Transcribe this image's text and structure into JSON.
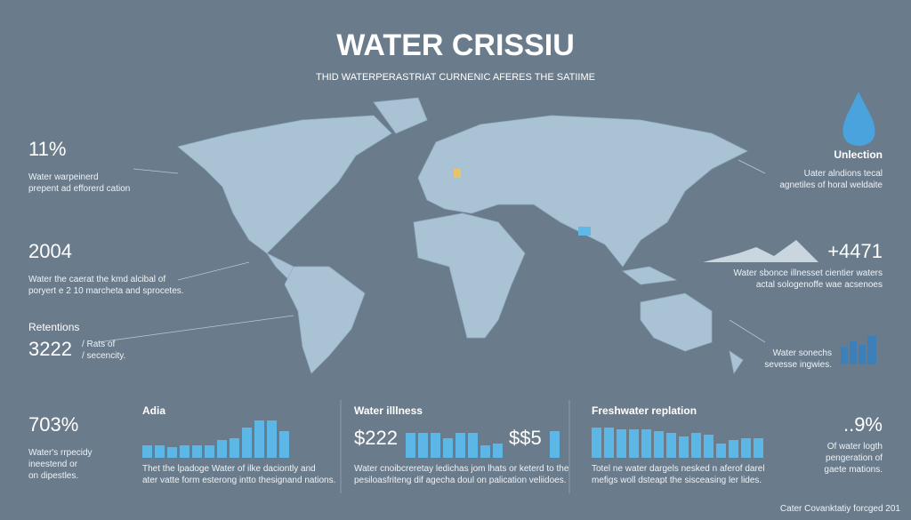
{
  "header": {
    "title": "WATER CRISSIU",
    "subtitle": "THID WATERPERASTRIAT CURNENIC AFERES THE SATIIME"
  },
  "left_stats": [
    {
      "value": "11%",
      "lines": [
        "Water warpeinerd",
        "prepent ad efforerd cation"
      ]
    },
    {
      "value": "2004",
      "lines": [
        "Water the caerat the kmd alcibal of",
        "poryert e 2 10 marcheta and sprocetes."
      ]
    },
    {
      "heading": "Retentions",
      "value": "3222",
      "lines": [
        "/ Rats of",
        "/ secencity."
      ]
    },
    {
      "value": "703%",
      "lines": [
        "Water's rrpecidy",
        "ineestend or",
        "on dipestles."
      ]
    }
  ],
  "right_stats": [
    {
      "heading": "Unlection",
      "lines": [
        "Uater alndions tecal",
        "agnetiles of horal weldaite"
      ]
    },
    {
      "value": "+4471",
      "lines": [
        "Water sbonce illnesset cientier waters",
        "actal sologenoffe wae acsenoes"
      ]
    },
    {
      "lines": [
        "Water sonechs",
        "sevesse ingwies."
      ]
    },
    {
      "value": "..9%",
      "lines": [
        "Of water logth",
        "pengeration of",
        "gaete mations."
      ]
    }
  ],
  "panels": [
    {
      "title": "Adia",
      "values": [
        14,
        14,
        12,
        14,
        14,
        14,
        20,
        22,
        34,
        42,
        42,
        30
      ],
      "lines": [
        "Thet the lpadoge Water of ilke daciontly and",
        "ater vatte form esterong intto thesignand nations."
      ]
    },
    {
      "title": "Water illlness",
      "left_value": "$222",
      "right_value": "$$5",
      "values": [
        28,
        28,
        28,
        22,
        28,
        28,
        14,
        16
      ],
      "extra_values": [
        30
      ],
      "lines": [
        "Water cnoibcreretay ledichas jom lhats or keterd to the",
        "pesiloasfriteng dif agecha doul on palication veliidoes."
      ]
    },
    {
      "title": "Freshwater replation",
      "values": [
        34,
        34,
        32,
        32,
        32,
        30,
        28,
        24,
        28,
        26,
        16,
        20,
        22,
        22
      ],
      "lines": [
        "Totel ne water dargels nesked n aferof darel",
        "mefigs woll dsteapt the sisceasing ler lides."
      ]
    }
  ],
  "footer": "Cater Covanktatiy forcged 201"
}
